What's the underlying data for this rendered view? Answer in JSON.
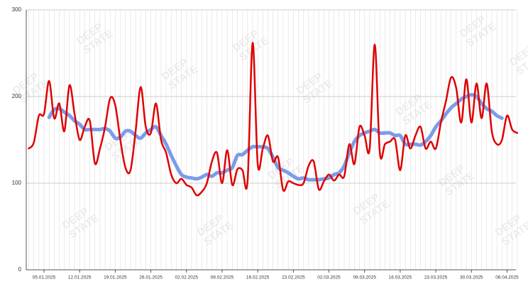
{
  "chart_data": {
    "type": "line",
    "watermark": [
      "DEEP",
      "STATE"
    ],
    "categories": [
      null,
      null,
      null,
      "05.01.2025",
      null,
      null,
      null,
      null,
      null,
      null,
      "12.01.2025",
      null,
      null,
      null,
      null,
      null,
      null,
      "19.01.2025",
      null,
      null,
      null,
      null,
      null,
      null,
      "26.01.2025",
      null,
      null,
      null,
      null,
      null,
      null,
      "02.02.2025",
      null,
      null,
      null,
      null,
      null,
      null,
      "09.02.2025",
      null,
      null,
      null,
      null,
      null,
      null,
      "16.02.2025",
      null,
      null,
      null,
      null,
      null,
      null,
      "23.02.2025",
      null,
      null,
      null,
      null,
      null,
      null,
      "02.03.2025",
      null,
      null,
      null,
      null,
      null,
      null,
      "09.03.2025",
      null,
      null,
      null,
      null,
      null,
      null,
      "16.03.2025",
      null,
      null,
      null,
      null,
      null,
      null,
      "23.03.2025",
      null,
      null,
      null,
      null,
      null,
      null,
      "30.03.2025",
      null,
      null,
      null,
      null,
      null,
      null,
      "06.04.2025",
      null,
      null
    ],
    "series": [
      {
        "color": "#e00000",
        "width": 2.5,
        "values": [
          140,
          147,
          178,
          180,
          218,
          175,
          192,
          160,
          213,
          180,
          150,
          165,
          172,
          123,
          140,
          165,
          198,
          190,
          150,
          118,
          115,
          160,
          211,
          165,
          158,
          192,
          150,
          135,
          110,
          100,
          105,
          98,
          95,
          86,
          90,
          100,
          125,
          135,
          100,
          138,
          98,
          116,
          115,
          102,
          262,
          122,
          140,
          155,
          125,
          130,
          92,
          102,
          100,
          98,
          100,
          120,
          125,
          93,
          102,
          110,
          103,
          110,
          108,
          145,
          122,
          165,
          155,
          140,
          260,
          135,
          145,
          148,
          150,
          115,
          155,
          140,
          155,
          165,
          140,
          148,
          140,
          170,
          195,
          222,
          210,
          170,
          220,
          170,
          215,
          175,
          215,
          160,
          145,
          150,
          178,
          162,
          158
        ]
      },
      {
        "color": "#7b9ce8",
        "width": 5,
        "values": [
          null,
          null,
          null,
          null,
          176,
          185,
          186,
          182,
          178,
          172,
          168,
          162,
          162,
          162,
          162,
          163,
          160,
          152,
          153,
          160,
          160,
          155,
          152,
          158,
          162,
          165,
          155,
          145,
          132,
          120,
          110,
          107,
          106,
          105,
          107,
          110,
          108,
          112,
          112,
          115,
          118,
          132,
          133,
          138,
          142,
          142,
          142,
          140,
          130,
          118,
          115,
          112,
          108,
          105,
          106,
          104,
          104,
          104,
          105,
          106,
          110,
          112,
          120,
          135,
          148,
          155,
          158,
          160,
          162,
          158,
          158,
          158,
          155,
          155,
          145,
          145,
          145,
          144,
          148,
          155,
          165,
          172,
          180,
          187,
          192,
          197,
          200,
          202,
          200,
          192,
          186,
          183,
          178,
          175,
          null,
          null,
          null
        ]
      }
    ],
    "ylim": [
      0,
      300
    ],
    "yticks": [
      0,
      100,
      200,
      300
    ],
    "grid": true
  }
}
